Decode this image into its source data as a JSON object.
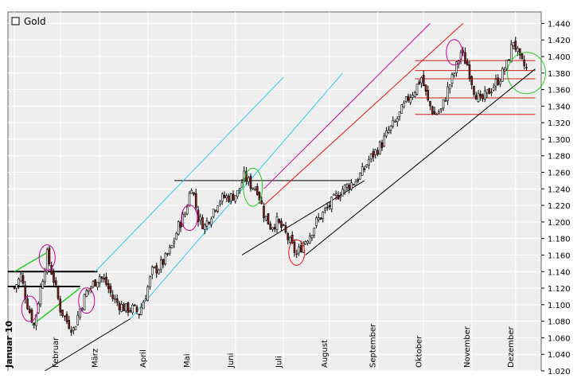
{
  "chart_data": {
    "type": "candlestick",
    "legend": {
      "label": "Gold",
      "placement": "top-left"
    },
    "ylim": [
      1020,
      1450
    ],
    "grid": true,
    "y_ticks": [
      1020,
      1040,
      1060,
      1080,
      1100,
      1120,
      1140,
      1160,
      1180,
      1200,
      1220,
      1240,
      1260,
      1280,
      1300,
      1320,
      1340,
      1360,
      1380,
      1400,
      1420,
      1440
    ],
    "y_tick_labels": [
      "1.020",
      "1.040",
      "1.060",
      "1.080",
      "1.100",
      "1.120",
      "1.140",
      "1.160",
      "1.180",
      "1.200",
      "1.220",
      "1.240",
      "1.260",
      "1.280",
      "1.300",
      "1.320",
      "1.340",
      "1.360",
      "1.380",
      "1.400",
      "1.420",
      "1.440"
    ],
    "month_labels": [
      "Januar 10",
      "Februar",
      "März",
      "April",
      "Mai",
      "Juni",
      "Juli",
      "August",
      "September",
      "Oktober",
      "November",
      "Dezember"
    ],
    "month_bold": [
      true,
      false,
      false,
      false,
      false,
      false,
      false,
      false,
      false,
      false,
      false,
      false
    ],
    "month_day_index": [
      0,
      21,
      39,
      61,
      81,
      101,
      123,
      144,
      166,
      187,
      209,
      229
    ],
    "approx_close_series": [
      [
        0,
        1120
      ],
      [
        3,
        1135
      ],
      [
        6,
        1100
      ],
      [
        9,
        1075
      ],
      [
        12,
        1120
      ],
      [
        15,
        1160
      ],
      [
        18,
        1130
      ],
      [
        21,
        1095
      ],
      [
        24,
        1080
      ],
      [
        27,
        1070
      ],
      [
        30,
        1095
      ],
      [
        33,
        1115
      ],
      [
        36,
        1125
      ],
      [
        39,
        1135
      ],
      [
        42,
        1125
      ],
      [
        45,
        1108
      ],
      [
        48,
        1100
      ],
      [
        51,
        1095
      ],
      [
        54,
        1095
      ],
      [
        57,
        1090
      ],
      [
        60,
        1112
      ],
      [
        63,
        1140
      ],
      [
        66,
        1145
      ],
      [
        69,
        1155
      ],
      [
        72,
        1170
      ],
      [
        75,
        1195
      ],
      [
        78,
        1210
      ],
      [
        81,
        1245
      ],
      [
        84,
        1205
      ],
      [
        87,
        1195
      ],
      [
        90,
        1210
      ],
      [
        93,
        1225
      ],
      [
        96,
        1230
      ],
      [
        99,
        1230
      ],
      [
        102,
        1235
      ],
      [
        105,
        1255
      ],
      [
        108,
        1245
      ],
      [
        111,
        1240
      ],
      [
        114,
        1210
      ],
      [
        117,
        1195
      ],
      [
        120,
        1200
      ],
      [
        123,
        1190
      ],
      [
        126,
        1175
      ],
      [
        129,
        1160
      ],
      [
        132,
        1175
      ],
      [
        135,
        1185
      ],
      [
        138,
        1200
      ],
      [
        141,
        1210
      ],
      [
        144,
        1220
      ],
      [
        147,
        1230
      ],
      [
        150,
        1240
      ],
      [
        153,
        1245
      ],
      [
        156,
        1250
      ],
      [
        159,
        1260
      ],
      [
        162,
        1275
      ],
      [
        165,
        1285
      ],
      [
        168,
        1295
      ],
      [
        171,
        1310
      ],
      [
        174,
        1320
      ],
      [
        177,
        1335
      ],
      [
        180,
        1350
      ],
      [
        183,
        1360
      ],
      [
        186,
        1375
      ],
      [
        189,
        1345
      ],
      [
        192,
        1330
      ],
      [
        195,
        1335
      ],
      [
        198,
        1360
      ],
      [
        201,
        1380
      ],
      [
        204,
        1405
      ],
      [
        207,
        1390
      ],
      [
        210,
        1360
      ],
      [
        213,
        1345
      ],
      [
        216,
        1355
      ],
      [
        219,
        1365
      ],
      [
        222,
        1375
      ],
      [
        225,
        1390
      ],
      [
        228,
        1420
      ],
      [
        231,
        1395
      ],
      [
        234,
        1385
      ]
    ],
    "annotations": {
      "horizontal_levels": [
        {
          "y": 1140,
          "x_from": 0,
          "x_to": 38
        },
        {
          "y": 1122,
          "x_from": 0,
          "x_to": 30
        },
        {
          "y": 1250,
          "x_from": 76,
          "x_to": 154
        },
        {
          "y": 1395,
          "x_from": 186,
          "x_to": 238
        },
        {
          "y": 1383,
          "x_from": 186,
          "x_to": 238
        },
        {
          "y": 1373,
          "x_from": 186,
          "x_to": 238
        },
        {
          "y": 1350,
          "x_from": 186,
          "x_to": 238
        },
        {
          "y": 1330,
          "x_from": 186,
          "x_to": 238
        }
      ],
      "trend_lines": [
        {
          "color": "black",
          "from": [
            14,
            1020
          ],
          "to": [
            53,
            1083
          ]
        },
        {
          "color": "black",
          "from": [
            104,
            1160
          ],
          "to": [
            160,
            1250
          ]
        },
        {
          "color": "black",
          "from": [
            133,
            1160
          ],
          "to": [
            238,
            1385
          ]
        }
      ],
      "channels": [
        {
          "color": "cyan",
          "from": [
            53,
            1083
          ],
          "to": [
            150,
            1380
          ]
        },
        {
          "color": "cyan",
          "from": [
            37,
            1140
          ],
          "to": [
            123,
            1375
          ]
        },
        {
          "color": "red",
          "from": [
            114,
            1220
          ],
          "to": [
            205,
            1440
          ]
        },
        {
          "color": "magenta",
          "from": [
            114,
            1240
          ],
          "to": [
            190,
            1440
          ]
        },
        {
          "color": "green",
          "from": [
            0,
            1140
          ],
          "to": [
            15,
            1163
          ]
        },
        {
          "color": "green",
          "from": [
            8,
            1075
          ],
          "to": [
            30,
            1120
          ]
        }
      ],
      "ellipses": [
        {
          "color": "magenta",
          "cx": 7,
          "cy": 1095
        },
        {
          "color": "magenta",
          "cx": 15,
          "cy": 1157
        },
        {
          "color": "magenta",
          "cx": 33,
          "cy": 1105
        },
        {
          "color": "magenta",
          "cx": 80,
          "cy": 1205
        },
        {
          "color": "green",
          "cx": 109,
          "cy": 1242
        },
        {
          "color": "red",
          "cx": 129,
          "cy": 1163
        },
        {
          "color": "magenta",
          "cx": 201,
          "cy": 1405
        },
        {
          "color": "green",
          "cx": 234,
          "cy": 1380
        }
      ]
    }
  }
}
